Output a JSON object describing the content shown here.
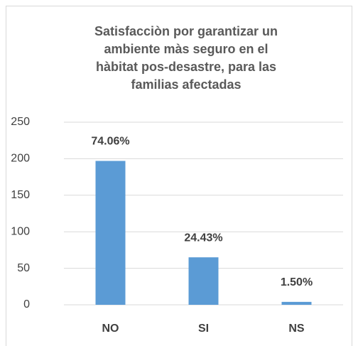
{
  "chart_data": {
    "type": "bar",
    "title": [
      "Satisfacciòn por garantizar un",
      "ambiente màs seguro en el",
      "hàbitat pos-desastre, para las",
      "familias afectadas"
    ],
    "categories": [
      "NO",
      "SI",
      "NS"
    ],
    "values": [
      197,
      65,
      4
    ],
    "percent_labels": [
      "74.06%",
      "24.43%",
      "1.50%"
    ],
    "color": "#5b9bd5",
    "ylim": [
      0,
      250
    ],
    "yticks": [
      0,
      50,
      100,
      150,
      200,
      250
    ],
    "grid": true
  }
}
